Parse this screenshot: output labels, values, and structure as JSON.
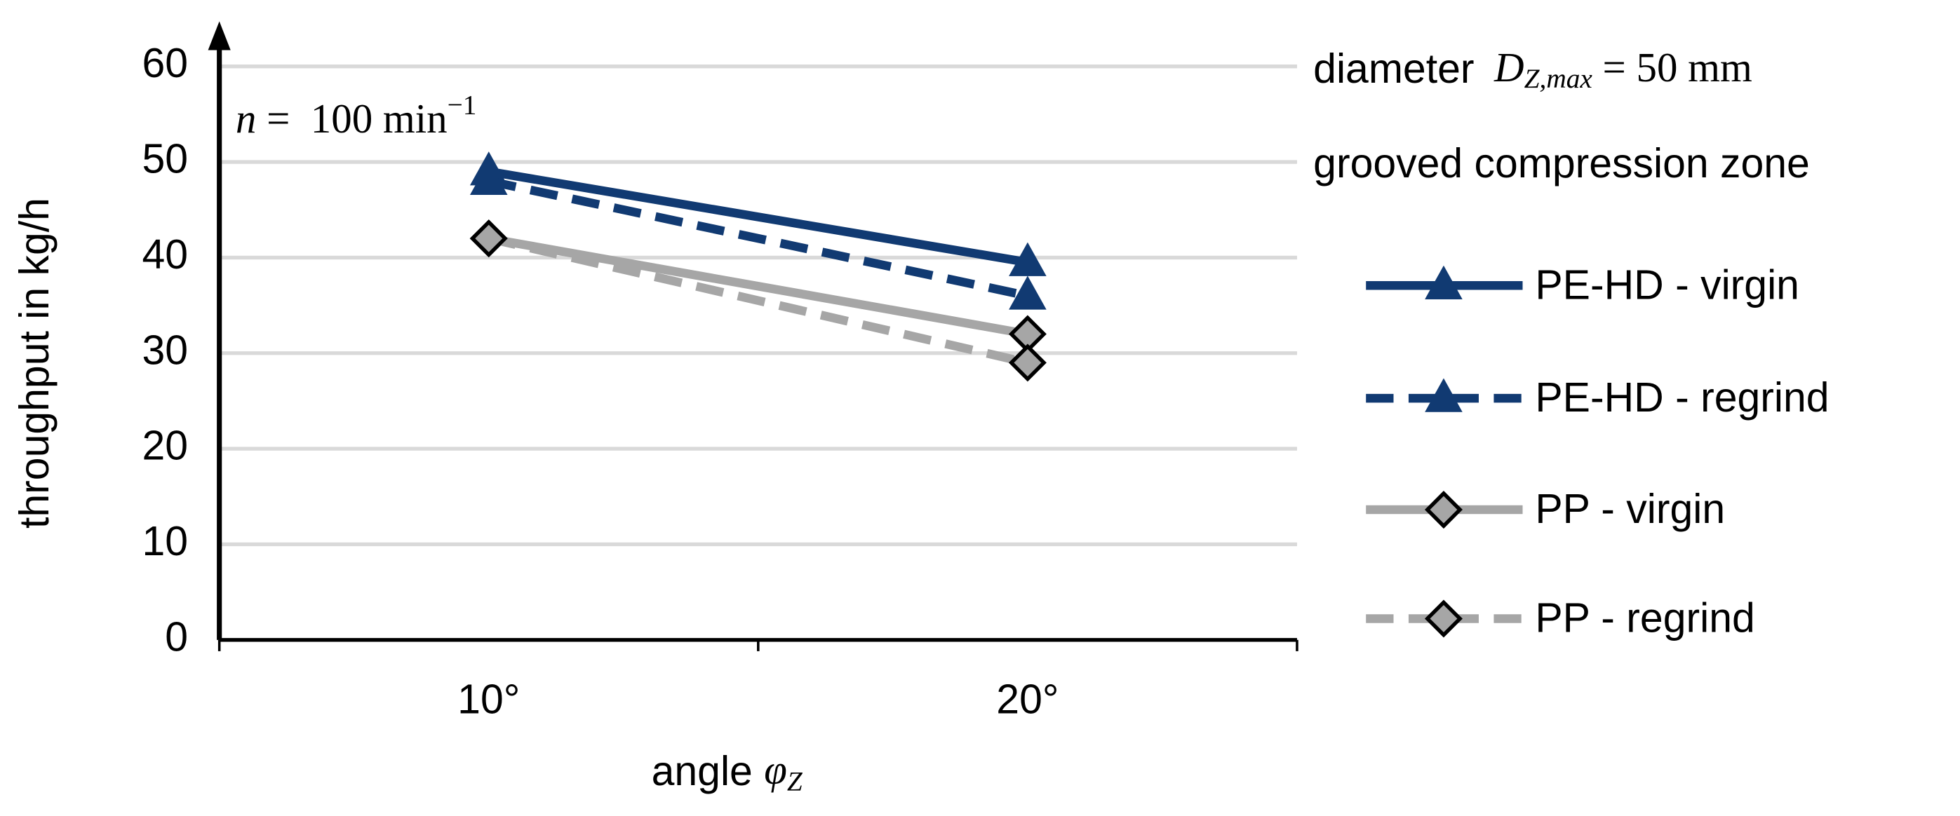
{
  "chart_data": {
    "type": "line",
    "x_label": {
      "text": "angle ",
      "symbol": "φ",
      "subscript": "Z"
    },
    "y_label": "throughput in kg/h",
    "annotation": {
      "symbol": "n",
      "text": " =  100 min",
      "superscript": "−1"
    },
    "info": [
      {
        "text": "diameter",
        "symbol": "D",
        "subscript": "Z,max",
        "rest": " = 50 mm"
      },
      {
        "text": "grooved compression zone"
      }
    ],
    "categories": [
      "10°",
      "20°"
    ],
    "ylim": [
      0,
      60
    ],
    "yticks": [
      0,
      10,
      20,
      30,
      40,
      50,
      60
    ],
    "grid": true,
    "legend": "right",
    "series": [
      {
        "name": "PE-HD - virgin",
        "color": "#113a72",
        "line_style": "solid",
        "marker": "triangle",
        "values": [
          49,
          39.5
        ]
      },
      {
        "name": "PE-HD - regrind",
        "color": "#113a72",
        "line_style": "dashed",
        "marker": "triangle",
        "values": [
          48,
          36
        ]
      },
      {
        "name": "PP - virgin",
        "color": "#a6a6a6",
        "line_style": "solid",
        "marker": "diamond",
        "values": [
          42,
          32
        ]
      },
      {
        "name": "PP - regrind",
        "color": "#a6a6a6",
        "line_style": "dashed",
        "marker": "diamond",
        "values": [
          42,
          29
        ]
      }
    ]
  }
}
